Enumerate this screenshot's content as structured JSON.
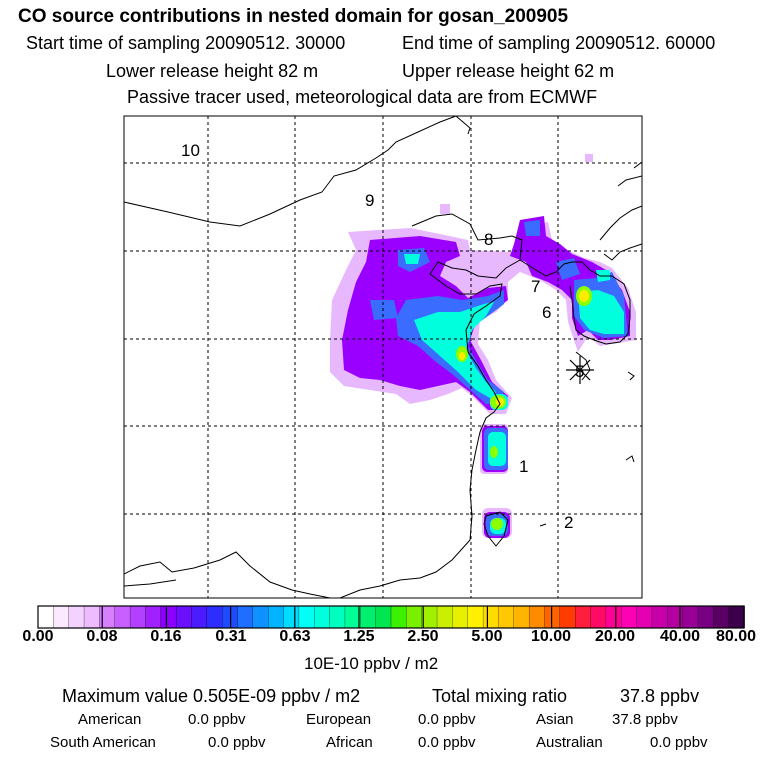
{
  "header": {
    "title": "CO  source contributions in nested domain for gosan_200905",
    "start_time": "Start time of sampling 20090512. 30000",
    "end_time": "End time of sampling 20090512. 60000",
    "lower_height": "Lower release height   82 m",
    "upper_height": "Upper release height   62 m",
    "tracer_note": "Passive tracer used, meteorological data are from ECMWF"
  },
  "map": {
    "region_labels": [
      "10",
      "9",
      "8",
      "7",
      "6",
      "5",
      "1",
      "2"
    ],
    "receptor_marker": "asterisk-station",
    "colors": {
      "lowest": "#e8b8ff",
      "purple": "#9900ff",
      "blue": "#3c78ff",
      "cyan": "#00ffdc",
      "green": "#8cff00",
      "yellow": "#ffeb00",
      "grid": "#000000"
    }
  },
  "colorbar": {
    "ticks": [
      "0.00",
      "0.08",
      "0.16",
      "0.31",
      "0.63",
      "1.25",
      "2.50",
      "5.00",
      "10.00",
      "20.00",
      "40.00",
      "80.00"
    ],
    "units": "10E-10 ppbv / m2",
    "colors": [
      "#ffffff",
      "#fbeaff",
      "#f4d2ff",
      "#ecbcff",
      "#d680ff",
      "#c660ff",
      "#b440ff",
      "#a020ff",
      "#8c00ff",
      "#6a10ff",
      "#4a1cff",
      "#2d2dff",
      "#1e4bff",
      "#1e6eff",
      "#0f91ff",
      "#00b4ff",
      "#00dcff",
      "#00fff5",
      "#00ffdc",
      "#00ffbe",
      "#00ff96",
      "#00f06e",
      "#00e650",
      "#3cf000",
      "#78f000",
      "#a0f000",
      "#c8f000",
      "#e6f000",
      "#fff000",
      "#ffdc00",
      "#ffc800",
      "#ffb400",
      "#ff8c00",
      "#ff6400",
      "#ff3c00",
      "#ff1e3c",
      "#ff0a64",
      "#ff0096",
      "#ff00b4",
      "#e600b4",
      "#c800aa",
      "#b400a0",
      "#960096",
      "#780082",
      "#5a0064",
      "#3c004b"
    ]
  },
  "footer": {
    "max_label": "Maximum value  0.505E-09 ppbv / m2",
    "total_label": "Total mixing ratio",
    "total_value": "37.8 ppbv",
    "contributions": [
      {
        "name": "American",
        "value": "0.0 ppbv"
      },
      {
        "name": "European",
        "value": "0.0 ppbv"
      },
      {
        "name": "Asian",
        "value": "37.8 ppbv"
      },
      {
        "name": "South American",
        "value": "0.0 ppbv"
      },
      {
        "name": "African",
        "value": "0.0 ppbv"
      },
      {
        "name": "Australian",
        "value": "0.0 ppbv"
      }
    ]
  }
}
